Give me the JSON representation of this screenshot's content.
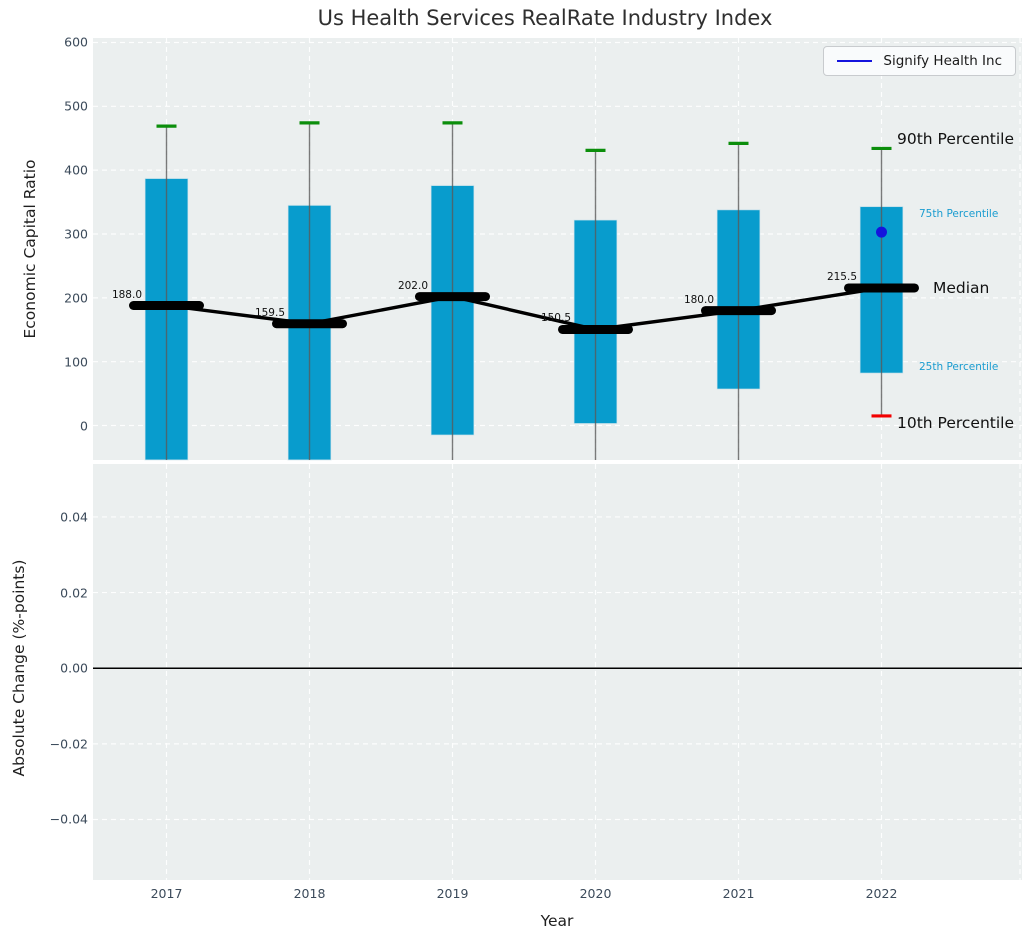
{
  "title": "Us Health Services RealRate Industry Index",
  "legend": {
    "label": "Signify Health Inc"
  },
  "axes": {
    "top": {
      "ylabel": "Economic Capital Ratio"
    },
    "bottom": {
      "ylabel": "Absolute Change (%-points)",
      "xlabel": "Year"
    }
  },
  "colors": {
    "box": "#089ccd",
    "p90_cap": "#0b8e0b",
    "p10_cap": "#f20000",
    "median": "#000000",
    "whisker": "#5a5a5a",
    "company": "#1414dd",
    "small_label": "#1a9cd0",
    "axes_bg": "#ebefef",
    "grid": "#ffffff",
    "tick": "#3b4a5a"
  },
  "chart_data": [
    {
      "type": "box",
      "title": "Us Health Services RealRate Industry Index",
      "ylabel": "Economic Capital Ratio",
      "xlabel": "Year",
      "ylim": [
        -54,
        607
      ],
      "grid": true,
      "categories": [
        "2017",
        "2018",
        "2019",
        "2020",
        "2021",
        "2022"
      ],
      "yticks": [
        {
          "label": "0",
          "value": 0
        },
        {
          "label": "100",
          "value": 100
        },
        {
          "label": "200",
          "value": 200
        },
        {
          "label": "300",
          "value": 300
        },
        {
          "label": "400",
          "value": 400
        },
        {
          "label": "500",
          "value": 500
        },
        {
          "label": "600",
          "value": 600
        }
      ],
      "boxes": [
        {
          "year": "2017",
          "p90": 469,
          "p75": 387,
          "median": 188.0,
          "p25": null,
          "p10": null,
          "median_label": "188.0"
        },
        {
          "year": "2018",
          "p90": 474,
          "p75": 345,
          "median": 159.5,
          "p25": null,
          "p10": null,
          "median_label": "159.5"
        },
        {
          "year": "2019",
          "p90": 474,
          "p75": 376,
          "median": 202.0,
          "p25": -15,
          "p10": null,
          "median_label": "202.0"
        },
        {
          "year": "2020",
          "p90": 431,
          "p75": 322,
          "median": 150.5,
          "p25": 3,
          "p10": null,
          "median_label": "150.5"
        },
        {
          "year": "2021",
          "p90": 442,
          "p75": 338,
          "median": 180.0,
          "p25": 57,
          "p10": null,
          "median_label": "180.0"
        },
        {
          "year": "2022",
          "p90": 434,
          "p75": 343,
          "median": 215.5,
          "p25": 82,
          "p10": 15,
          "median_label": "215.5"
        }
      ],
      "company_series": {
        "name": "Signify Health Inc",
        "points": [
          {
            "year": "2022",
            "value": 303
          }
        ]
      },
      "annotations": [
        {
          "text": "90th Percentile",
          "value": 434,
          "style": "large"
        },
        {
          "text": "75th Percentile",
          "value": 343,
          "style": "small"
        },
        {
          "text": "Median",
          "value": 215.5,
          "style": "large"
        },
        {
          "text": "25th Percentile",
          "value": 82,
          "style": "small"
        },
        {
          "text": "10th Percentile",
          "value": 15,
          "style": "large"
        }
      ],
      "legend": {
        "entries": [
          {
            "label": "Signify Health Inc",
            "color": "#1414dd"
          }
        ],
        "position": "upper right"
      }
    },
    {
      "type": "line",
      "ylabel": "Absolute Change (%-points)",
      "xlabel": "Year",
      "ylim": [
        -0.056,
        0.054
      ],
      "grid": true,
      "categories": [
        "2017",
        "2018",
        "2019",
        "2020",
        "2021",
        "2022"
      ],
      "yticks": [
        {
          "label": "0.04",
          "value": 0.04
        },
        {
          "label": "0.02",
          "value": 0.02
        },
        {
          "label": "0.00",
          "value": 0.0
        },
        {
          "label": "−0.02",
          "value": -0.02
        },
        {
          "label": "−0.04",
          "value": -0.04
        }
      ],
      "series": [],
      "zero_line": true
    }
  ]
}
